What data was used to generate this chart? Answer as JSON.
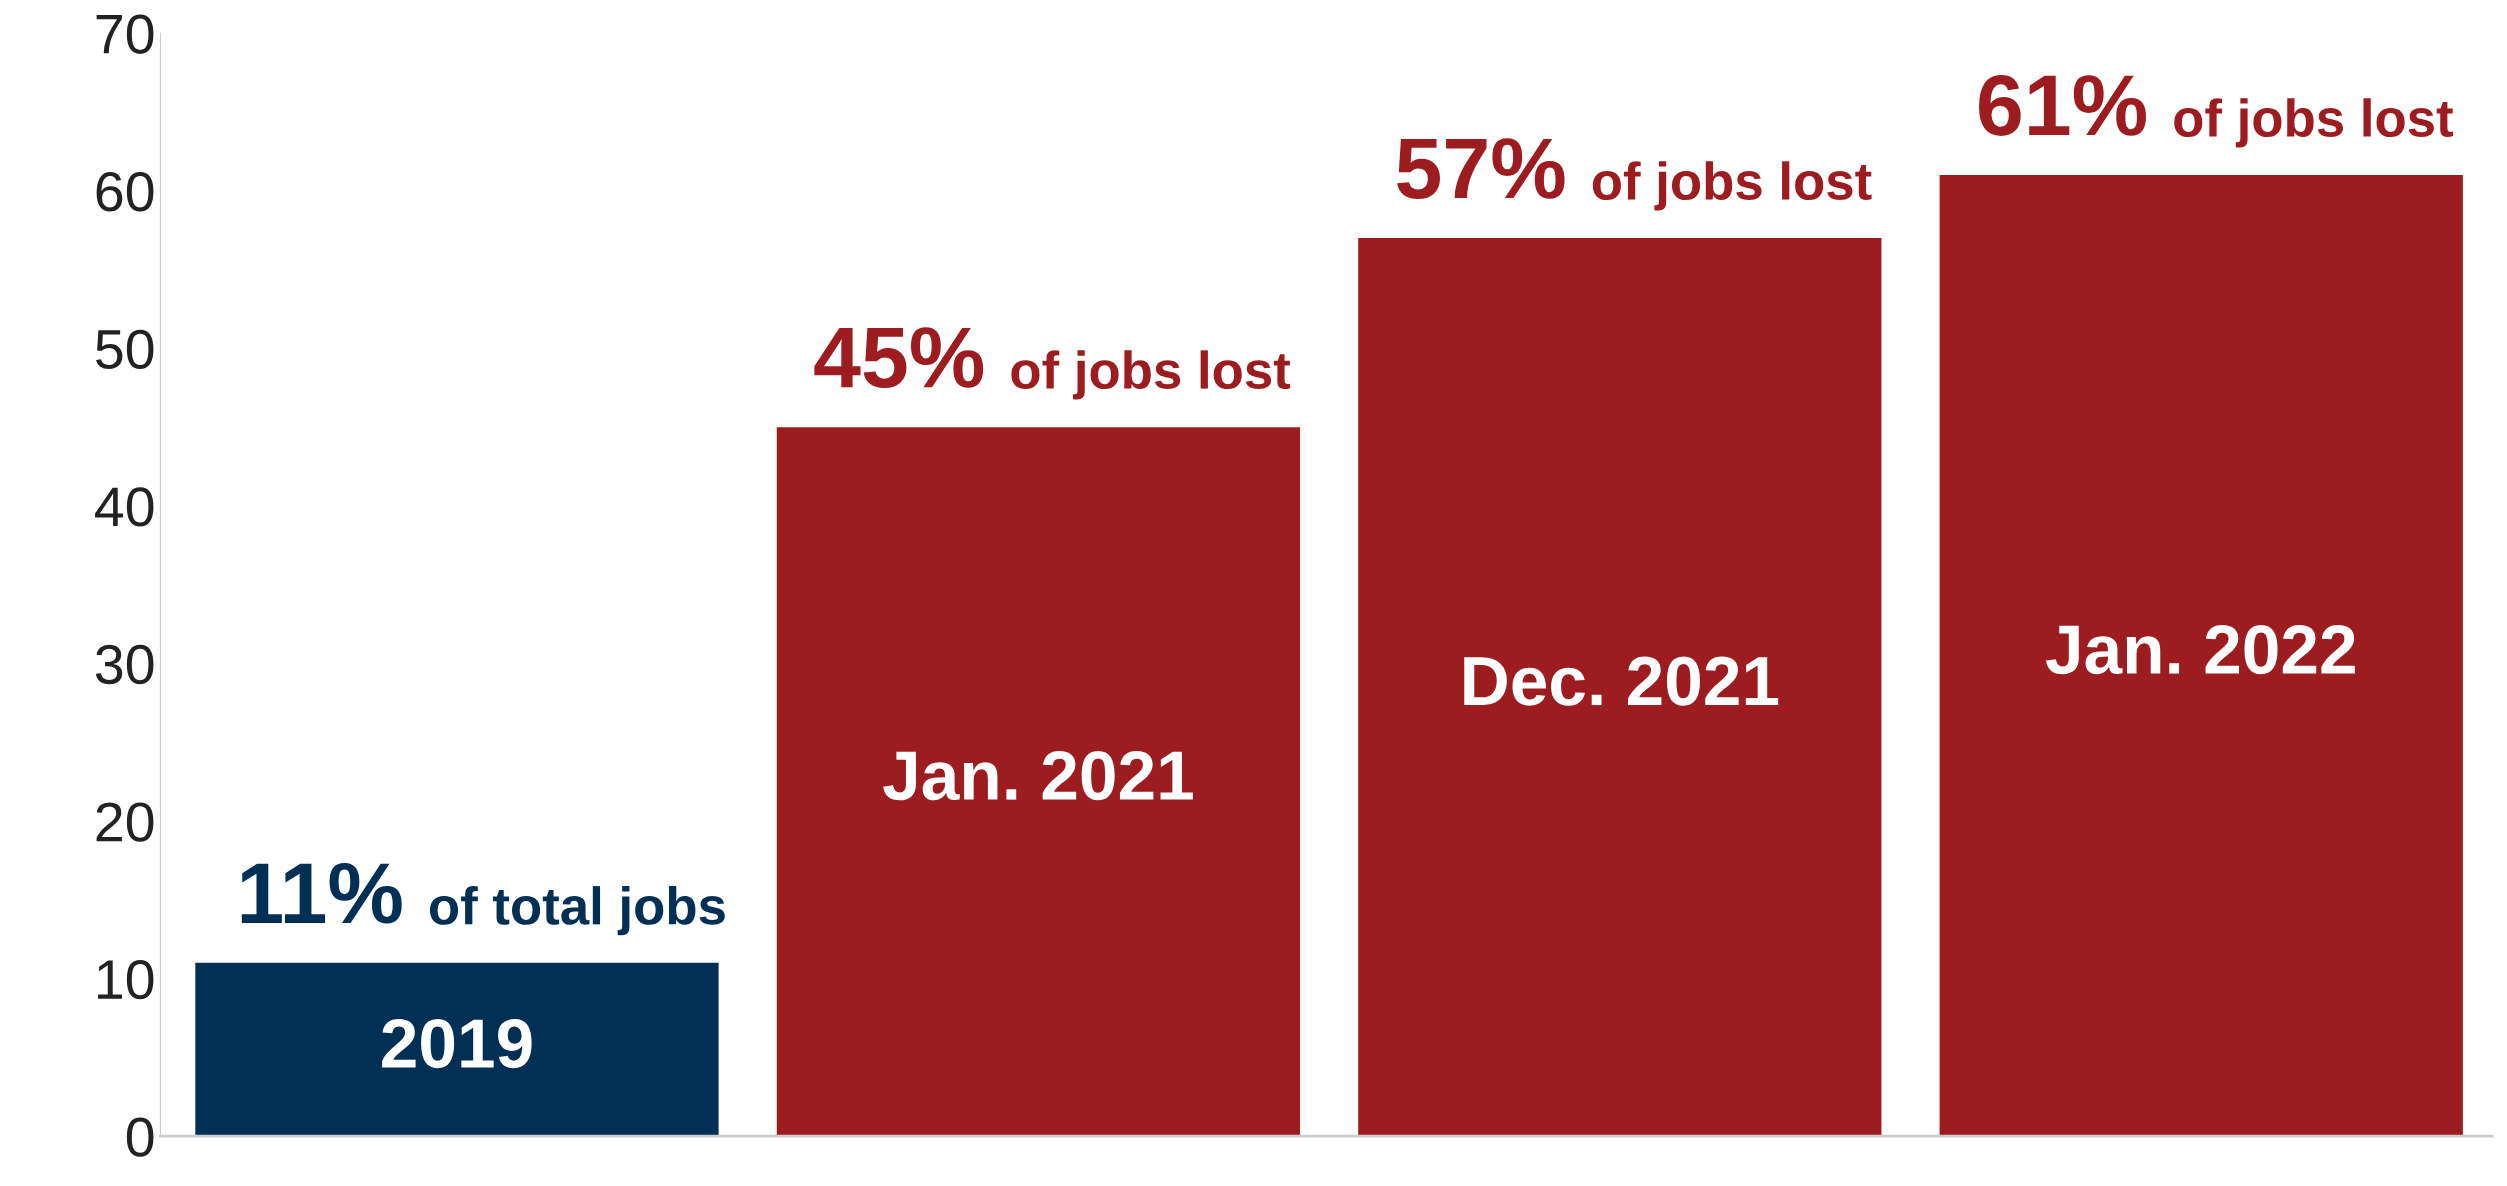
{
  "chart_data": {
    "type": "bar",
    "categories": [
      "2019",
      "Jan. 2021",
      "Dec. 2021",
      "Jan. 2022"
    ],
    "values": [
      11,
      45,
      57,
      61
    ],
    "colors": [
      "#022f54",
      "#9c1c20",
      "#9c1c20",
      "#9c1c20"
    ],
    "value_labels": [
      "11% of total jobs",
      "45% of jobs lost",
      "57% of jobs lost",
      "61% of jobs lost"
    ],
    "ylim": [
      0,
      70
    ],
    "yticks": [
      0,
      10,
      20,
      30,
      40,
      50,
      60,
      70
    ],
    "tick_labels": "y",
    "grid": false,
    "legend": false
  }
}
